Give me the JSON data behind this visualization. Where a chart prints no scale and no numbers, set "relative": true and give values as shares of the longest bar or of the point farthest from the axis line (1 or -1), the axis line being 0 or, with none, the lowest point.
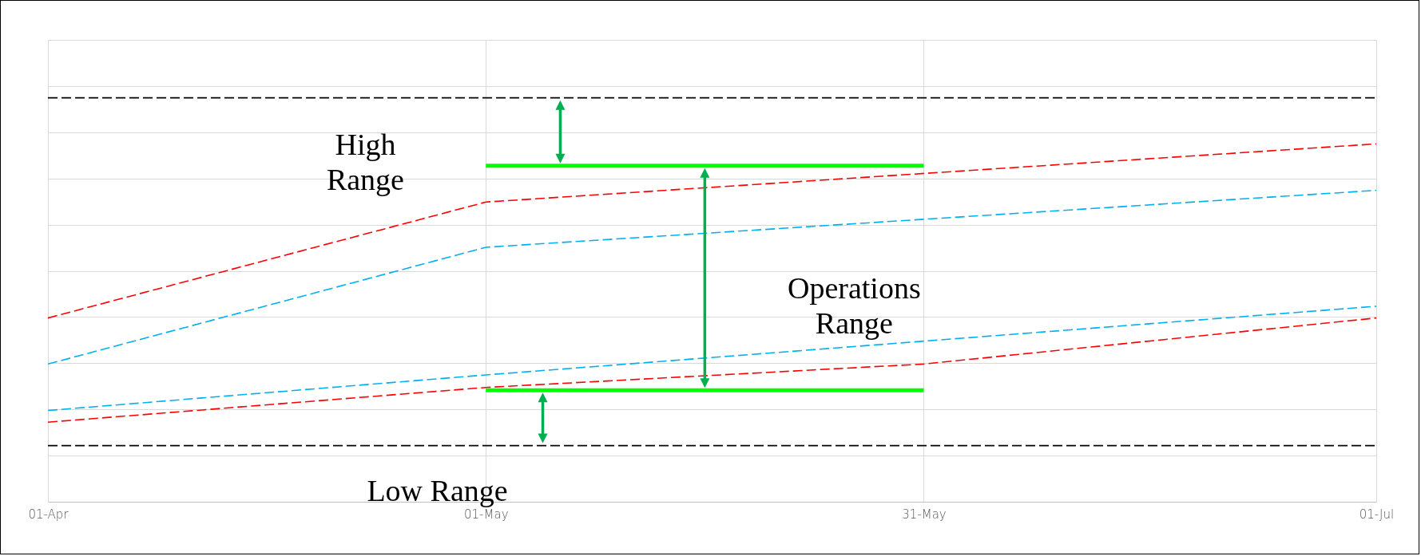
{
  "chart_data": {
    "type": "line",
    "relative": true,
    "grid": true,
    "marker": "none",
    "xlim": [
      "--04-01",
      "--07-01"
    ],
    "xticks": [
      {
        "value": "--04-01",
        "label": "01-Apr"
      },
      {
        "value": "--05-01",
        "label": "01-May"
      },
      {
        "value": "--05-31",
        "label": "31-May"
      },
      {
        "value": "--07-01",
        "label": "01-Jul"
      }
    ],
    "series": [
      {
        "color": "#000000",
        "line_style": "dashed",
        "x": [
          "--04-01",
          "--07-01"
        ],
        "values": [
          1,
          1
        ]
      },
      {
        "color": "#00ff00",
        "line_style": "solid",
        "x": [
          "--05-01",
          "--05-31"
        ],
        "values": [
          0.832,
          0.832
        ]
      },
      {
        "color": "#ff0000",
        "line_style": "dashed",
        "x": [
          "--04-01",
          "--05-01",
          "--07-01"
        ],
        "values": [
          0.455,
          0.742,
          0.886
        ]
      },
      {
        "color": "#00b0f0",
        "line_style": "dashed",
        "x": [
          "--04-01",
          "--05-01",
          "--07-01"
        ],
        "values": [
          0.341,
          0.63,
          0.771
        ]
      },
      {
        "color": "#00b0f0",
        "line_style": "dashed",
        "x": [
          "--04-01",
          "--05-01",
          "--07-01"
        ],
        "values": [
          0.226,
          0.314,
          0.484
        ]
      },
      {
        "color": "#ff0000",
        "line_style": "dashed",
        "x": [
          "--04-01",
          "--05-01",
          "--05-31",
          "--07-01"
        ],
        "values": [
          0.197,
          0.283,
          0.341,
          0.455
        ]
      },
      {
        "color": "#00ff00",
        "line_style": "solid",
        "x": [
          "--05-01",
          "--05-31"
        ],
        "values": [
          0.276,
          0.276
        ]
      },
      {
        "color": "#000000",
        "line_style": "dashed",
        "x": [
          "--04-01",
          "--07-01"
        ],
        "values": [
          0.139,
          0.139
        ]
      }
    ],
    "annotations": [
      "High\nRange",
      "Operations\nRange",
      "Low Range"
    ]
  }
}
